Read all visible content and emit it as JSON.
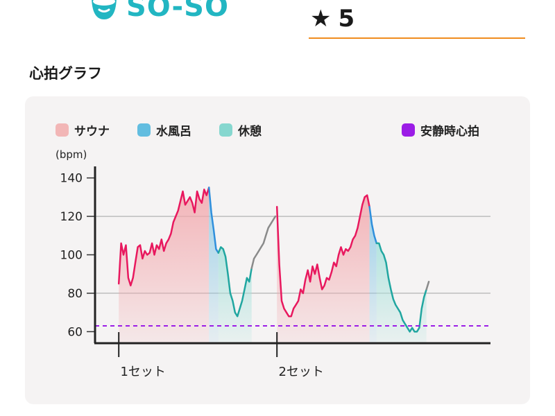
{
  "header": {
    "brand_text": "SO-SO",
    "rating_value": "5",
    "star_icon": "star-icon",
    "brand_icon": "sauna-face-icon",
    "brand_color": "#22b6c2",
    "accent_color": "#f08c1e"
  },
  "section_title": "心拍グラフ",
  "chart_data": {
    "type": "line",
    "title": "",
    "xlabel": "",
    "ylabel": "(bpm)",
    "ylim": [
      54,
      146
    ],
    "yticks": [
      60,
      80,
      100,
      120,
      140
    ],
    "grid": true,
    "legend": [
      {
        "name": "サウナ",
        "color": "#f2b6b6"
      },
      {
        "name": "水風呂",
        "color": "#62bde0"
      },
      {
        "name": "休憩",
        "color": "#86d7cf"
      },
      {
        "name": "安静時心拍",
        "color": "#9b1ce6"
      }
    ],
    "resting_hr": 63,
    "set_markers": [
      {
        "label": "1セット",
        "x": 0
      },
      {
        "label": "2セット",
        "x": 20
      }
    ],
    "x_range": [
      -3,
      47
    ],
    "series": [
      {
        "name": "サウナ",
        "phase": "sauna",
        "color": "#e8185e",
        "x": [
          0,
          0.3,
          0.6,
          0.9,
          1.2,
          1.5,
          1.8,
          2.1,
          2.4,
          2.7,
          3.0,
          3.3,
          3.6,
          3.9,
          4.2,
          4.5,
          4.8,
          5.1,
          5.4,
          5.7,
          6.0,
          6.3,
          6.6,
          6.9,
          7.2,
          7.5,
          7.8,
          8.1,
          8.4,
          8.7,
          9.0,
          9.3,
          9.6,
          9.9,
          10.2,
          10.5,
          10.8,
          11.1,
          11.4
        ],
        "y": [
          85,
          106,
          100,
          105,
          88,
          84,
          88,
          96,
          104,
          105,
          98,
          102,
          100,
          101,
          106,
          100,
          105,
          103,
          108,
          102,
          106,
          108,
          111,
          117,
          120,
          123,
          128,
          133,
          126,
          128,
          130,
          127,
          122,
          133,
          129,
          127,
          134,
          131,
          135
        ]
      },
      {
        "name": "水風呂",
        "phase": "cold",
        "color": "#2f8fdc",
        "x": [
          11.4,
          11.7,
          12.0,
          12.3,
          12.6
        ],
        "y": [
          135,
          122,
          113,
          103,
          101
        ]
      },
      {
        "name": "休憩",
        "phase": "rest",
        "color": "#20a6a0",
        "x": [
          12.6,
          12.9,
          13.2,
          13.5,
          13.8,
          14.1,
          14.4,
          14.7,
          15.0,
          15.3,
          15.6,
          15.9,
          16.2,
          16.5,
          16.8
        ],
        "y": [
          101,
          104,
          103,
          99,
          90,
          80,
          76,
          70,
          68,
          72,
          76,
          82,
          88,
          86,
          93
        ]
      },
      {
        "name": "遷移",
        "phase": "transition",
        "color": "#8a8a8a",
        "x": [
          16.8,
          17.1,
          17.4,
          17.7,
          18.0,
          18.3,
          18.6,
          18.9,
          19.2,
          19.5,
          19.8
        ],
        "y": [
          93,
          98,
          100,
          102,
          104,
          106,
          110,
          114,
          116,
          118,
          120
        ]
      },
      {
        "name": "サウナ",
        "phase": "sauna",
        "color": "#e8185e",
        "x": [
          20,
          20.3,
          20.6,
          20.9,
          21.2,
          21.5,
          21.8,
          22.1,
          22.4,
          22.7,
          23.0,
          23.3,
          23.6,
          23.9,
          24.2,
          24.5,
          24.8,
          25.1,
          25.4,
          25.7,
          26.0,
          26.3,
          26.6,
          26.9,
          27.2,
          27.5,
          27.8,
          28.1,
          28.4,
          28.7,
          29.0,
          29.3,
          29.6,
          29.9,
          30.2,
          30.5,
          30.8,
          31.1,
          31.4,
          31.7
        ],
        "y": [
          125,
          95,
          76,
          72,
          70,
          68,
          68,
          72,
          74,
          76,
          82,
          80,
          87,
          92,
          86,
          94,
          90,
          95,
          88,
          82,
          84,
          88,
          87,
          91,
          96,
          94,
          100,
          104,
          100,
          103,
          102,
          104,
          108,
          110,
          114,
          120,
          126,
          130,
          131,
          125
        ]
      },
      {
        "name": "水風呂",
        "phase": "cold",
        "color": "#2f8fdc",
        "x": [
          31.7,
          32.0,
          32.3,
          32.6
        ],
        "y": [
          125,
          116,
          110,
          106
        ]
      },
      {
        "name": "休憩",
        "phase": "rest",
        "color": "#20a6a0",
        "x": [
          32.6,
          32.9,
          33.2,
          33.5,
          33.8,
          34.1,
          34.4,
          34.7,
          35.0,
          35.3,
          35.6,
          35.9,
          36.2,
          36.5,
          36.8,
          37.1,
          37.4,
          37.7,
          38.0,
          38.3,
          38.6,
          38.9
        ],
        "y": [
          106,
          106,
          102,
          100,
          96,
          88,
          82,
          77,
          74,
          72,
          70,
          66,
          64,
          62,
          60,
          62,
          60,
          60,
          62,
          72,
          78,
          82
        ]
      },
      {
        "name": "遷移",
        "phase": "transition",
        "color": "#8a8a8a",
        "x": [
          38.9,
          39.2
        ],
        "y": [
          82,
          86
        ]
      }
    ]
  }
}
